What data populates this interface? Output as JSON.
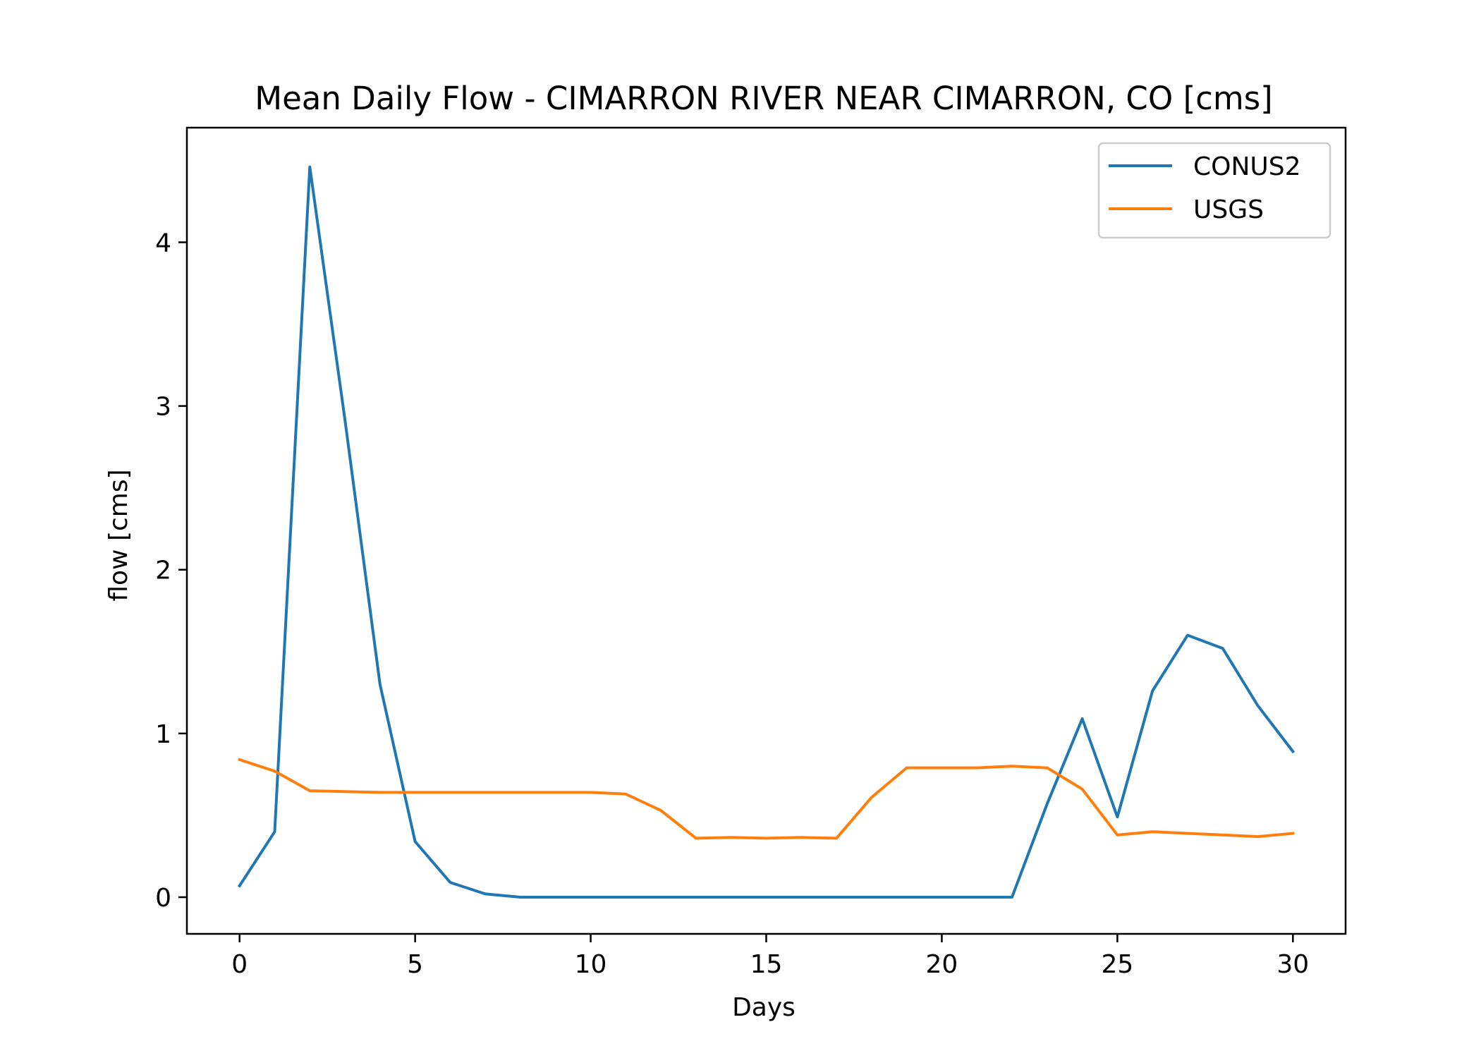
{
  "chart_data": {
    "type": "line",
    "title": "Mean Daily Flow - CIMARRON RIVER NEAR CIMARRON, CO [cms]",
    "xlabel": "Days",
    "ylabel": "flow [cms]",
    "xlim": [
      -1.5,
      31.5
    ],
    "ylim": [
      -0.224,
      4.7
    ],
    "xticks": [
      0,
      5,
      10,
      15,
      20,
      25,
      30
    ],
    "yticks": [
      0,
      1,
      2,
      3,
      4
    ],
    "grid": false,
    "legend_position": "top-right",
    "x": [
      0,
      1,
      2,
      3,
      4,
      5,
      6,
      7,
      8,
      9,
      10,
      11,
      12,
      13,
      14,
      15,
      16,
      17,
      18,
      19,
      20,
      21,
      22,
      23,
      24,
      25,
      26,
      27,
      28,
      29,
      30
    ],
    "series": [
      {
        "name": "CONUS2",
        "color": "#1f77b4",
        "values": [
          0.07,
          0.4,
          4.46,
          2.92,
          1.3,
          0.34,
          0.09,
          0.02,
          0.0,
          0.0,
          0.0,
          0.0,
          0.0,
          0.0,
          0.0,
          0.0,
          0.0,
          0.0,
          0.0,
          0.0,
          0.0,
          0.0,
          0.0,
          0.57,
          1.09,
          0.49,
          1.26,
          1.6,
          1.52,
          1.17,
          0.89
        ]
      },
      {
        "name": "USGS",
        "color": "#ff7f0e",
        "values": [
          0.84,
          0.77,
          0.65,
          0.645,
          0.64,
          0.64,
          0.64,
          0.64,
          0.64,
          0.64,
          0.64,
          0.63,
          0.53,
          0.36,
          0.365,
          0.36,
          0.365,
          0.36,
          0.61,
          0.79,
          0.79,
          0.79,
          0.8,
          0.79,
          0.66,
          0.38,
          0.4,
          0.39,
          0.38,
          0.37,
          0.39
        ]
      }
    ]
  }
}
